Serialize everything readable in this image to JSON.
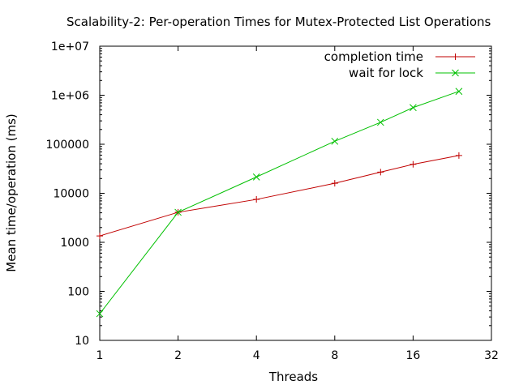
{
  "chart_data": {
    "type": "line",
    "title": "Scalability-2: Per-operation Times for Mutex-Protected List Operations",
    "xlabel": "Threads",
    "ylabel": "Mean time/operation (ms)",
    "x_scale": "log2",
    "y_scale": "log10",
    "xlim": [
      1,
      32
    ],
    "ylim": [
      10,
      10000000
    ],
    "x_ticks": [
      1,
      2,
      4,
      8,
      16,
      32
    ],
    "x_tick_labels": [
      "1",
      "2",
      "4",
      "8",
      "16",
      "32"
    ],
    "y_ticks": [
      10,
      100,
      1000,
      10000,
      100000,
      1000000,
      10000000
    ],
    "y_tick_labels": [
      "10",
      "100",
      "1000",
      "10000",
      "100000",
      "1e+06",
      "1e+07"
    ],
    "grid": false,
    "legend_position": "top-right",
    "series": [
      {
        "name": "completion time",
        "color": "#c00000",
        "marker": "plus",
        "x": [
          1,
          2,
          4,
          8,
          12,
          16,
          24
        ],
        "y": [
          1350,
          4100,
          7500,
          16000,
          27000,
          39000,
          59000
        ]
      },
      {
        "name": "wait for lock",
        "color": "#00c000",
        "marker": "cross",
        "x": [
          1,
          2,
          4,
          8,
          12,
          16,
          24
        ],
        "y": [
          35,
          4100,
          21500,
          115000,
          280000,
          560000,
          1200000
        ]
      }
    ]
  }
}
